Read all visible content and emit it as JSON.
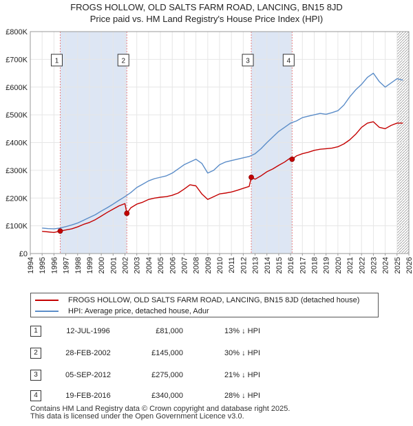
{
  "title": {
    "line1": "FROGS HOLLOW, OLD SALTS FARM ROAD, LANCING, BN15 8JD",
    "line2": "Price paid vs. HM Land Registry's House Price Index (HPI)"
  },
  "colors": {
    "property_line": "#c40000",
    "hpi_line": "#5a8cc8",
    "shade": "#dde6f4",
    "marker_line": "#e88080"
  },
  "legend": {
    "property": "FROGS HOLLOW, OLD SALTS FARM ROAD, LANCING, BN15 8JD (detached house)",
    "hpi": "HPI: Average price, detached house, Adur"
  },
  "sales": [
    {
      "num": "1",
      "date": "12-JUL-1996",
      "price": "£81,000",
      "hpi": "13% ↓ HPI"
    },
    {
      "num": "2",
      "date": "28-FEB-2002",
      "price": "£145,000",
      "hpi": "30% ↓ HPI"
    },
    {
      "num": "3",
      "date": "05-SEP-2012",
      "price": "£275,000",
      "hpi": "21% ↓ HPI"
    },
    {
      "num": "4",
      "date": "19-FEB-2016",
      "price": "£340,000",
      "hpi": "28% ↓ HPI"
    }
  ],
  "footer": {
    "line1": "Contains HM Land Registry data © Crown copyright and database right 2025.",
    "line2": "This data is licensed under the Open Government Licence v3.0."
  },
  "chart_data": {
    "type": "line",
    "title": "Price paid vs. HM Land Registry's House Price Index (HPI)",
    "xlabel": "",
    "ylabel": "",
    "xlim": [
      1994,
      2026
    ],
    "ylim": [
      0,
      800000
    ],
    "x_ticks": [
      1994,
      1995,
      1996,
      1997,
      1998,
      1999,
      2000,
      2001,
      2002,
      2003,
      2004,
      2005,
      2006,
      2007,
      2008,
      2009,
      2010,
      2011,
      2012,
      2013,
      2014,
      2015,
      2016,
      2017,
      2018,
      2019,
      2020,
      2021,
      2022,
      2023,
      2024,
      2025,
      2026
    ],
    "y_ticks": [
      {
        "value": 0,
        "label": "£0"
      },
      {
        "value": 100000,
        "label": "£100K"
      },
      {
        "value": 200000,
        "label": "£200K"
      },
      {
        "value": 300000,
        "label": "£300K"
      },
      {
        "value": 400000,
        "label": "£400K"
      },
      {
        "value": 500000,
        "label": "£500K"
      },
      {
        "value": 600000,
        "label": "£600K"
      },
      {
        "value": 700000,
        "label": "£700K"
      },
      {
        "value": 800000,
        "label": "£800K"
      }
    ],
    "grid": true,
    "shaded_ranges": [
      [
        1996.53,
        2002.16
      ],
      [
        2012.68,
        2016.13
      ]
    ],
    "hatched_from": 2025.0,
    "series": [
      {
        "name": "FROGS HOLLOW, OLD SALTS FARM ROAD, LANCING, BN15 8JD (detached house)",
        "x": [
          1995.0,
          1995.5,
          1996.0,
          1996.53,
          1997.0,
          1997.5,
          1998.0,
          1998.5,
          1999.0,
          1999.5,
          2000.0,
          2000.5,
          2001.0,
          2001.5,
          2002.0,
          2002.16,
          2002.5,
          2003.0,
          2003.5,
          2004.0,
          2004.5,
          2005.0,
          2005.5,
          2006.0,
          2006.5,
          2007.0,
          2007.5,
          2008.0,
          2008.5,
          2009.0,
          2009.5,
          2010.0,
          2010.5,
          2011.0,
          2011.5,
          2012.0,
          2012.5,
          2012.68,
          2013.0,
          2013.5,
          2014.0,
          2014.5,
          2015.0,
          2015.5,
          2016.0,
          2016.13,
          2016.5,
          2017.0,
          2017.5,
          2018.0,
          2018.5,
          2019.0,
          2019.5,
          2020.0,
          2020.5,
          2021.0,
          2021.5,
          2022.0,
          2022.5,
          2023.0,
          2023.5,
          2024.0,
          2024.5,
          2025.0,
          2025.5
        ],
        "y": [
          80000,
          78000,
          76000,
          81000,
          85000,
          89000,
          96000,
          105000,
          112000,
          122000,
          135000,
          148000,
          160000,
          172000,
          180000,
          145000,
          165000,
          178000,
          185000,
          195000,
          200000,
          203000,
          205000,
          210000,
          218000,
          232000,
          248000,
          244000,
          215000,
          195000,
          205000,
          215000,
          218000,
          222000,
          228000,
          235000,
          242000,
          275000,
          268000,
          280000,
          295000,
          305000,
          318000,
          330000,
          345000,
          340000,
          352000,
          360000,
          365000,
          372000,
          376000,
          378000,
          380000,
          385000,
          395000,
          410000,
          430000,
          455000,
          470000,
          475000,
          455000,
          450000,
          462000,
          470000,
          470000
        ],
        "color": "#c40000"
      },
      {
        "name": "HPI: Average price, detached house, Adur",
        "x": [
          1995.0,
          1995.5,
          1996.0,
          1996.5,
          1997.0,
          1997.5,
          1998.0,
          1998.5,
          1999.0,
          1999.5,
          2000.0,
          2000.5,
          2001.0,
          2001.5,
          2002.0,
          2002.5,
          2003.0,
          2003.5,
          2004.0,
          2004.5,
          2005.0,
          2005.5,
          2006.0,
          2006.5,
          2007.0,
          2007.5,
          2008.0,
          2008.5,
          2009.0,
          2009.5,
          2010.0,
          2010.5,
          2011.0,
          2011.5,
          2012.0,
          2012.5,
          2013.0,
          2013.5,
          2014.0,
          2014.5,
          2015.0,
          2015.5,
          2016.0,
          2016.5,
          2017.0,
          2017.5,
          2018.0,
          2018.5,
          2019.0,
          2019.5,
          2020.0,
          2020.5,
          2021.0,
          2021.5,
          2022.0,
          2022.5,
          2023.0,
          2023.5,
          2024.0,
          2024.5,
          2025.0,
          2025.5
        ],
        "y": [
          92000,
          90000,
          89000,
          92000,
          97000,
          103000,
          110000,
          120000,
          130000,
          140000,
          153000,
          165000,
          178000,
          192000,
          205000,
          220000,
          238000,
          250000,
          262000,
          270000,
          275000,
          280000,
          290000,
          305000,
          320000,
          330000,
          340000,
          325000,
          290000,
          300000,
          320000,
          330000,
          335000,
          340000,
          345000,
          350000,
          360000,
          378000,
          400000,
          420000,
          440000,
          455000,
          470000,
          478000,
          490000,
          495000,
          500000,
          505000,
          502000,
          508000,
          515000,
          535000,
          565000,
          590000,
          610000,
          635000,
          650000,
          620000,
          600000,
          615000,
          630000,
          625000
        ],
        "color": "#5a8cc8"
      }
    ],
    "sale_points": [
      {
        "label": "1",
        "x": 1996.53,
        "y": 81000
      },
      {
        "label": "2",
        "x": 2002.16,
        "y": 145000
      },
      {
        "label": "3",
        "x": 2012.68,
        "y": 275000
      },
      {
        "label": "4",
        "x": 2016.13,
        "y": 340000
      }
    ]
  }
}
